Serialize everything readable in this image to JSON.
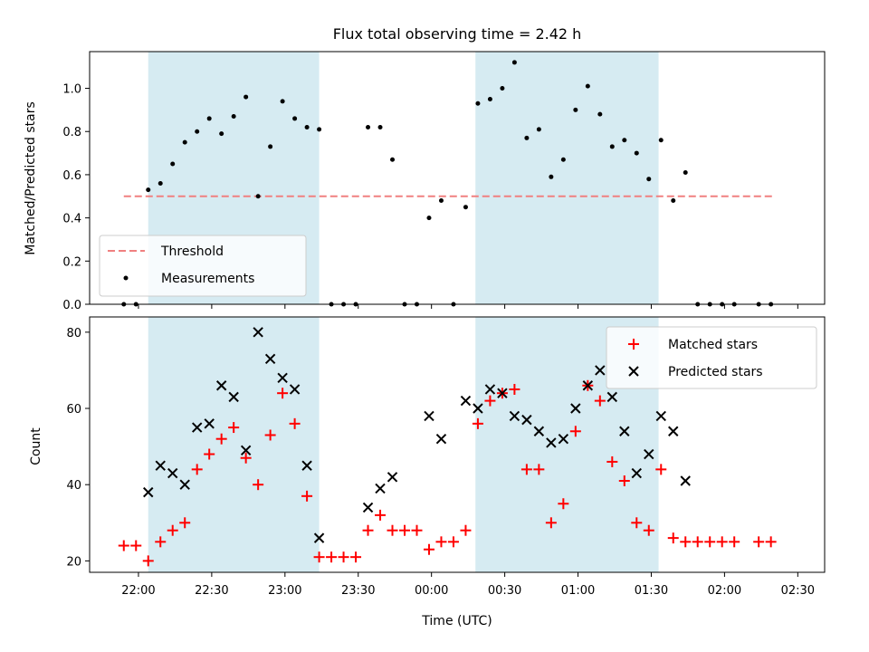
{
  "chart_data": [
    {
      "type": "scatter",
      "title": "Flux total observing time = 2.42 h",
      "xlabel": "",
      "ylabel": "Matched/Predicted stars",
      "ylim": [
        0,
        1.17
      ],
      "xlim": [
        "21:40",
        "02:41"
      ],
      "yticks": [
        "0.0",
        "0.2",
        "0.4",
        "0.6",
        "0.8",
        "1.0"
      ],
      "grid": false,
      "legend_position": "lower-left",
      "shaded_intervals": [
        [
          "22:04",
          "23:14"
        ],
        [
          "00:18",
          "01:33"
        ]
      ],
      "threshold": {
        "name": "Threshold",
        "y": 0.5,
        "x_start": "21:54",
        "x_end": "02:20",
        "color": "#f08080",
        "style": "dashed"
      },
      "series": [
        {
          "name": "Measurements",
          "color": "#000000",
          "points": [
            [
              "21:54",
              0.0
            ],
            [
              "21:59",
              0.0
            ],
            [
              "22:04",
              0.53
            ],
            [
              "22:09",
              0.56
            ],
            [
              "22:14",
              0.65
            ],
            [
              "22:19",
              0.75
            ],
            [
              "22:24",
              0.8
            ],
            [
              "22:29",
              0.86
            ],
            [
              "22:34",
              0.79
            ],
            [
              "22:39",
              0.87
            ],
            [
              "22:44",
              0.96
            ],
            [
              "22:49",
              0.5
            ],
            [
              "22:54",
              0.73
            ],
            [
              "22:59",
              0.94
            ],
            [
              "23:04",
              0.86
            ],
            [
              "23:09",
              0.82
            ],
            [
              "23:14",
              0.81
            ],
            [
              "23:19",
              0.0
            ],
            [
              "23:24",
              0.0
            ],
            [
              "23:29",
              0.0
            ],
            [
              "23:34",
              0.82
            ],
            [
              "23:39",
              0.82
            ],
            [
              "23:44",
              0.67
            ],
            [
              "23:49",
              0.0
            ],
            [
              "23:54",
              0.0
            ],
            [
              "23:59",
              0.4
            ],
            [
              "00:04",
              0.48
            ],
            [
              "00:09",
              0.0
            ],
            [
              "00:14",
              0.45
            ],
            [
              "00:19",
              0.93
            ],
            [
              "00:24",
              0.95
            ],
            [
              "00:29",
              1.0
            ],
            [
              "00:34",
              1.12
            ],
            [
              "00:39",
              0.77
            ],
            [
              "00:44",
              0.81
            ],
            [
              "00:49",
              0.59
            ],
            [
              "00:54",
              0.67
            ],
            [
              "00:59",
              0.9
            ],
            [
              "01:04",
              1.01
            ],
            [
              "01:09",
              0.88
            ],
            [
              "01:14",
              0.73
            ],
            [
              "01:19",
              0.76
            ],
            [
              "01:24",
              0.7
            ],
            [
              "01:29",
              0.58
            ],
            [
              "01:34",
              0.76
            ],
            [
              "01:39",
              0.48
            ],
            [
              "01:44",
              0.61
            ],
            [
              "01:49",
              0.0
            ],
            [
              "01:54",
              0.0
            ],
            [
              "01:59",
              0.0
            ],
            [
              "02:04",
              0.0
            ],
            [
              "02:14",
              0.0
            ],
            [
              "02:19",
              0.0
            ]
          ]
        }
      ]
    },
    {
      "type": "scatter",
      "title": "",
      "xlabel": "Time (UTC)",
      "ylabel": "Count",
      "ylim": [
        17,
        84
      ],
      "xlim": [
        "21:40",
        "02:41"
      ],
      "xticks": [
        "22:00",
        "22:30",
        "23:00",
        "23:30",
        "00:00",
        "00:30",
        "01:00",
        "01:30",
        "02:00",
        "02:30"
      ],
      "yticks": [
        "20",
        "40",
        "60",
        "80"
      ],
      "grid": false,
      "legend_position": "top-right",
      "shaded_intervals": [
        [
          "22:04",
          "23:14"
        ],
        [
          "00:18",
          "01:33"
        ]
      ],
      "series": [
        {
          "name": "Matched stars",
          "color": "#ff0000",
          "marker": "plus",
          "points": [
            [
              "21:54",
              24
            ],
            [
              "21:59",
              24
            ],
            [
              "22:04",
              20
            ],
            [
              "22:09",
              25
            ],
            [
              "22:14",
              28
            ],
            [
              "22:19",
              30
            ],
            [
              "22:24",
              44
            ],
            [
              "22:29",
              48
            ],
            [
              "22:34",
              52
            ],
            [
              "22:39",
              55
            ],
            [
              "22:44",
              47
            ],
            [
              "22:49",
              40
            ],
            [
              "22:54",
              53
            ],
            [
              "22:59",
              64
            ],
            [
              "23:04",
              56
            ],
            [
              "23:09",
              37
            ],
            [
              "23:14",
              21
            ],
            [
              "23:19",
              21
            ],
            [
              "23:24",
              21
            ],
            [
              "23:29",
              21
            ],
            [
              "23:34",
              28
            ],
            [
              "23:39",
              32
            ],
            [
              "23:44",
              28
            ],
            [
              "23:49",
              28
            ],
            [
              "23:54",
              28
            ],
            [
              "23:59",
              23
            ],
            [
              "00:04",
              25
            ],
            [
              "00:09",
              25
            ],
            [
              "00:14",
              28
            ],
            [
              "00:19",
              56
            ],
            [
              "00:24",
              62
            ],
            [
              "00:29",
              64
            ],
            [
              "00:34",
              65
            ],
            [
              "00:39",
              44
            ],
            [
              "00:44",
              44
            ],
            [
              "00:49",
              30
            ],
            [
              "00:54",
              35
            ],
            [
              "00:59",
              54
            ],
            [
              "01:04",
              66
            ],
            [
              "01:09",
              62
            ],
            [
              "01:14",
              46
            ],
            [
              "01:19",
              41
            ],
            [
              "01:24",
              30
            ],
            [
              "01:29",
              28
            ],
            [
              "01:34",
              44
            ],
            [
              "01:39",
              26
            ],
            [
              "01:44",
              25
            ],
            [
              "01:49",
              25
            ],
            [
              "01:54",
              25
            ],
            [
              "01:59",
              25
            ],
            [
              "02:04",
              25
            ],
            [
              "02:14",
              25
            ],
            [
              "02:19",
              25
            ]
          ]
        },
        {
          "name": "Predicted stars",
          "color": "#000000",
          "marker": "x",
          "points": [
            [
              "22:04",
              38
            ],
            [
              "22:09",
              45
            ],
            [
              "22:14",
              43
            ],
            [
              "22:19",
              40
            ],
            [
              "22:24",
              55
            ],
            [
              "22:29",
              56
            ],
            [
              "22:34",
              66
            ],
            [
              "22:39",
              63
            ],
            [
              "22:44",
              49
            ],
            [
              "22:49",
              80
            ],
            [
              "22:54",
              73
            ],
            [
              "22:59",
              68
            ],
            [
              "23:04",
              65
            ],
            [
              "23:09",
              45
            ],
            [
              "23:14",
              26
            ],
            [
              "23:34",
              34
            ],
            [
              "23:39",
              39
            ],
            [
              "23:44",
              42
            ],
            [
              "23:59",
              58
            ],
            [
              "00:04",
              52
            ],
            [
              "00:14",
              62
            ],
            [
              "00:19",
              60
            ],
            [
              "00:24",
              65
            ],
            [
              "00:29",
              64
            ],
            [
              "00:34",
              58
            ],
            [
              "00:39",
              57
            ],
            [
              "00:44",
              54
            ],
            [
              "00:49",
              51
            ],
            [
              "00:54",
              52
            ],
            [
              "00:59",
              60
            ],
            [
              "01:04",
              66
            ],
            [
              "01:09",
              70
            ],
            [
              "01:14",
              63
            ],
            [
              "01:19",
              54
            ],
            [
              "01:24",
              43
            ],
            [
              "01:29",
              48
            ],
            [
              "01:34",
              58
            ],
            [
              "01:39",
              54
            ],
            [
              "01:44",
              41
            ]
          ]
        }
      ]
    }
  ],
  "colors": {
    "shade": "#add8e6",
    "shade_opacity": 0.5,
    "axes": "#000000",
    "background": "#ffffff"
  }
}
